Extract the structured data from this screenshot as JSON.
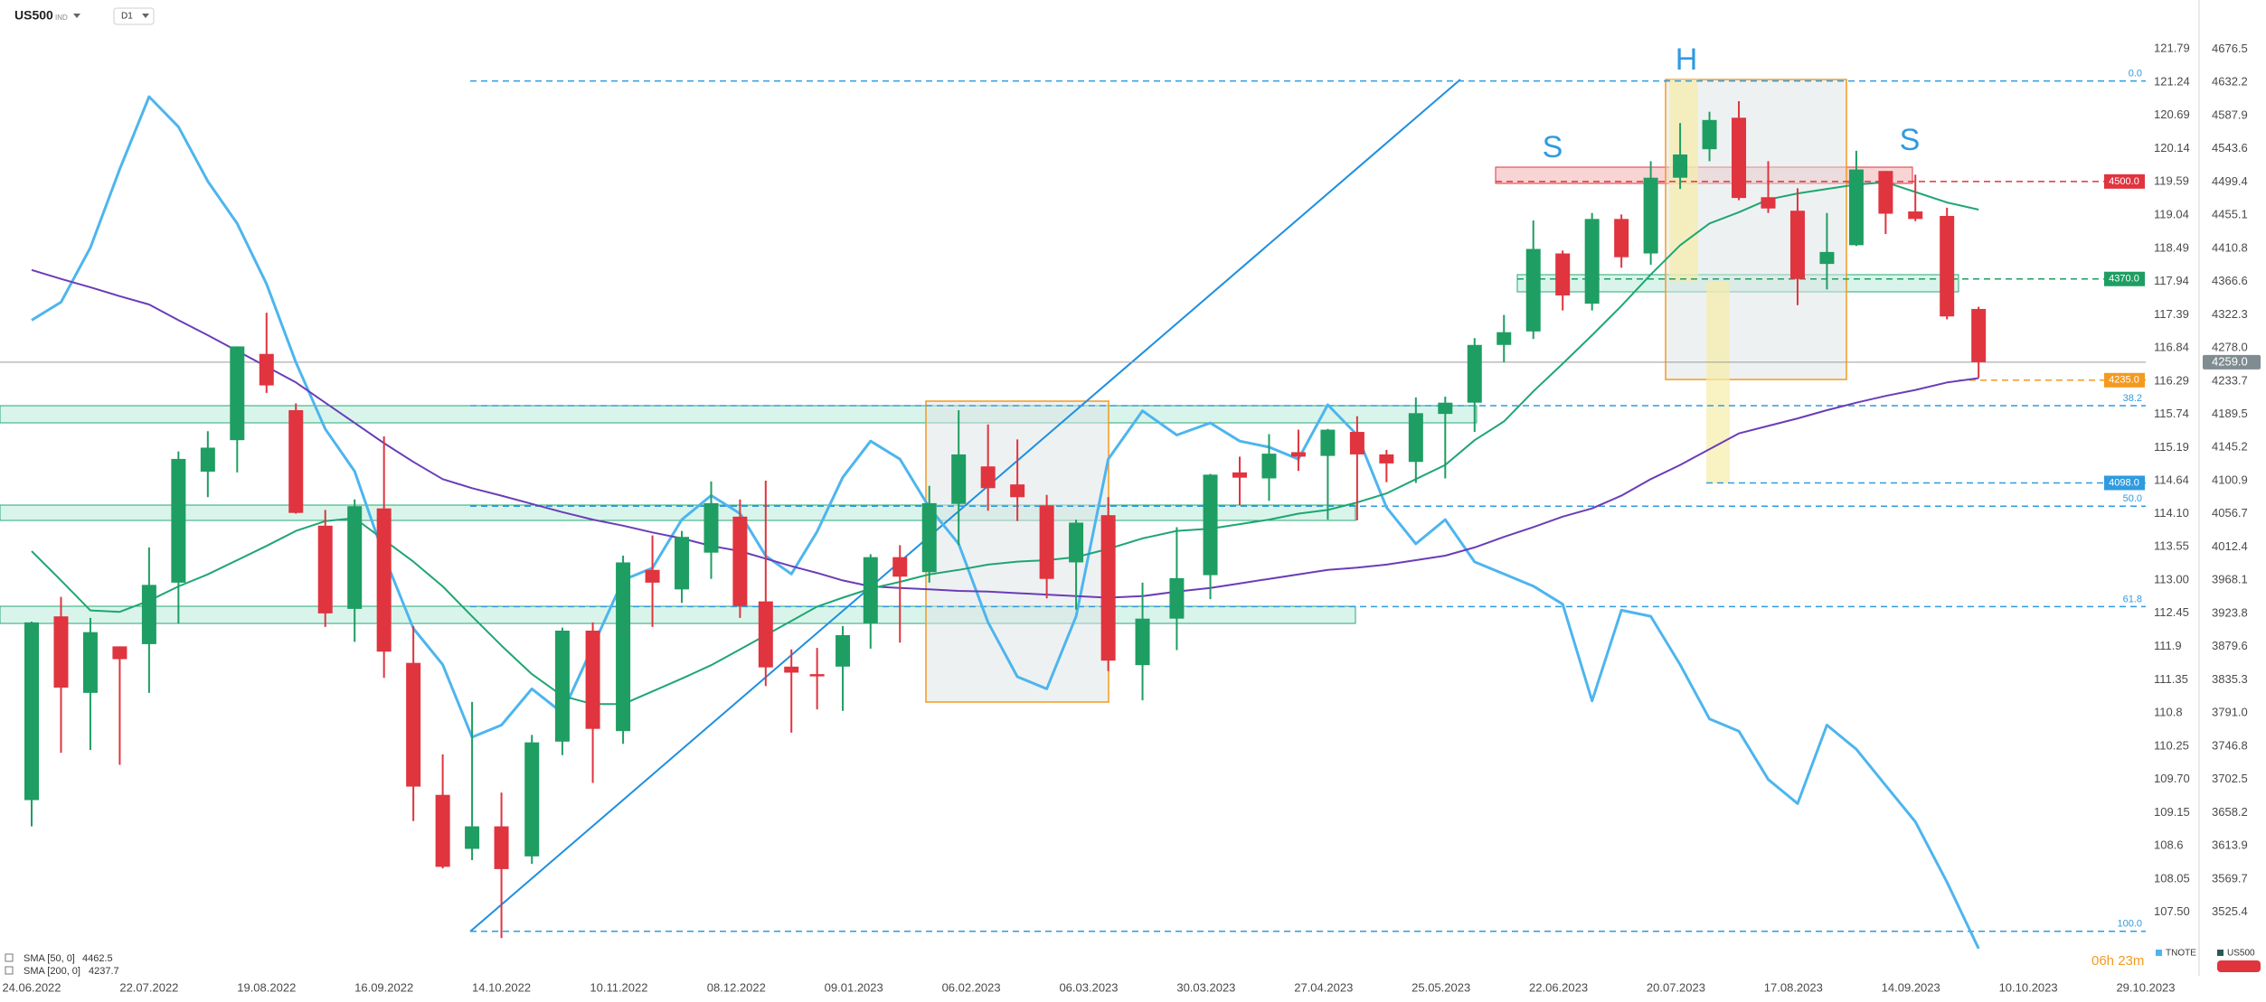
{
  "toolbar": {
    "symbol": "US500",
    "badge": "IND",
    "timeframe": "D1"
  },
  "chart_data": {
    "type": "candlestick",
    "x": [
      "24.06.2022",
      "01.07.2022",
      "08.07.2022",
      "15.07.2022",
      "22.07.2022",
      "29.07.2022",
      "05.08.2022",
      "12.08.2022",
      "19.08.2022",
      "26.08.2022",
      "02.09.2022",
      "09.09.2022",
      "16.09.2022",
      "23.09.2022",
      "30.09.2022",
      "07.10.2022",
      "14.10.2022",
      "21.10.2022",
      "28.10.2022",
      "04.11.2022",
      "11.11.2022",
      "18.11.2022",
      "25.11.2022",
      "02.12.2022",
      "09.12.2022",
      "16.12.2022",
      "23.12.2022",
      "30.12.2022",
      "06.01.2023",
      "13.01.2023",
      "20.01.2023",
      "27.01.2023",
      "03.02.2023",
      "10.02.2023",
      "17.02.2023",
      "24.02.2023",
      "03.03.2023",
      "10.03.2023",
      "17.03.2023",
      "24.03.2023",
      "31.03.2023",
      "07.04.2023",
      "14.04.2023",
      "21.04.2023",
      "28.04.2023",
      "05.05.2023",
      "12.05.2023",
      "19.05.2023",
      "26.05.2023",
      "02.06.2023",
      "09.06.2023",
      "16.06.2023",
      "23.06.2023",
      "30.06.2023",
      "07.07.2023",
      "14.07.2023",
      "21.07.2023",
      "28.07.2023",
      "04.08.2023",
      "11.08.2023",
      "18.08.2023",
      "25.08.2023",
      "01.09.2023",
      "08.09.2023",
      "15.09.2023",
      "22.09.2023",
      "29.09.2023"
    ],
    "series": [
      {
        "name": "US500",
        "type": "candlestick",
        "up_color": "#1e9e62",
        "down_color": "#e0343f",
        "open": [
          3675,
          3920,
          3818,
          3880,
          3883,
          3965,
          4113,
          4155,
          4270,
          4195,
          4041,
          3930,
          4064,
          3858,
          3682,
          3610,
          3640,
          3600,
          3753,
          3901,
          3767,
          3982,
          3956,
          4005,
          4053,
          3940,
          3853,
          3843,
          3853,
          3911,
          3999,
          3979,
          4070,
          4120,
          4096,
          4068,
          3992,
          4055,
          3855,
          3917,
          3975,
          4112,
          4104,
          4139,
          4134,
          4166,
          4136,
          4126,
          4190,
          4205,
          4282,
          4300,
          4404,
          4337,
          4450,
          4404,
          4505,
          4543,
          4585,
          4479,
          4461,
          4390,
          4415,
          4514,
          4460,
          4454,
          4330
        ],
        "high": [
          3913,
          3946,
          3918,
          3880,
          4012,
          4140,
          4167,
          4280,
          4325,
          4204,
          4062,
          4076,
          4160,
          3907,
          3736,
          3806,
          3685,
          3762,
          3905,
          3912,
          4001,
          4028,
          4034,
          4100,
          4076,
          4101,
          3876,
          3878,
          3907,
          4003,
          4015,
          4094,
          4195,
          4176,
          4156,
          4082,
          4049,
          4079,
          3965,
          4039,
          4110,
          4133,
          4163,
          4169,
          4170,
          4187,
          4142,
          4212,
          4213,
          4291,
          4322,
          4448,
          4408,
          4458,
          4456,
          4527,
          4578,
          4593,
          4607,
          4527,
          4491,
          4458,
          4541,
          4514,
          4509,
          4465,
          4333
        ],
        "low": [
          3640,
          3738,
          3742,
          3722,
          3818,
          3910,
          4079,
          4112,
          4218,
          4057,
          3906,
          3886,
          3838,
          3647,
          3584,
          3595,
          3491,
          3590,
          3735,
          3698,
          3750,
          3906,
          3938,
          3970,
          3918,
          3827,
          3765,
          3796,
          3794,
          3877,
          3885,
          3965,
          4015,
          4061,
          4047,
          3944,
          3929,
          3847,
          3808,
          3875,
          3943,
          4068,
          4074,
          4114,
          4049,
          4048,
          4099,
          4098,
          4104,
          4166,
          4259,
          4290,
          4328,
          4328,
          4385,
          4389,
          4490,
          4527,
          4475,
          4458,
          4335,
          4356,
          4414,
          4430,
          4447,
          4316,
          4238
        ],
        "close": [
          3912,
          3825,
          3899,
          3863,
          3962,
          4130,
          4145,
          4280,
          4228,
          4058,
          3924,
          4067,
          3873,
          3693,
          3586,
          3640,
          3583,
          3752,
          3901,
          3770,
          3992,
          3965,
          4026,
          4071,
          3934,
          3852,
          3845,
          3840,
          3895,
          3999,
          3973,
          4071,
          4136,
          4091,
          4079,
          3970,
          4045,
          3861,
          3917,
          3971,
          4109,
          4105,
          4137,
          4133,
          4169,
          4136,
          4124,
          4191,
          4205,
          4282,
          4299,
          4410,
          4348,
          4450,
          4399,
          4505,
          4536,
          4582,
          4478,
          4464,
          4370,
          4406,
          4516,
          4457,
          4450,
          4320,
          4259
        ]
      },
      {
        "name": "TNOTE",
        "type": "line",
        "axis": "y2",
        "color": "#4db5ee",
        "values": [
          117.3,
          117.6,
          118.5,
          119.8,
          121.0,
          120.5,
          119.6,
          118.9,
          117.9,
          116.6,
          115.5,
          114.8,
          113.4,
          112.2,
          111.6,
          110.4,
          110.6,
          111.2,
          110.8,
          111.9,
          113.0,
          113.2,
          114.0,
          114.4,
          114.1,
          113.4,
          113.1,
          113.8,
          114.7,
          115.3,
          115.0,
          114.2,
          113.6,
          112.3,
          111.4,
          111.2,
          112.4,
          115.0,
          115.8,
          115.4,
          115.6,
          115.3,
          115.2,
          115.0,
          115.9,
          115.4,
          114.2,
          113.6,
          114.0,
          113.3,
          113.1,
          112.9,
          112.6,
          111.0,
          112.5,
          112.4,
          111.6,
          110.7,
          110.5,
          109.7,
          109.3,
          110.6,
          110.2,
          109.6,
          109.0,
          108.0,
          106.9
        ]
      },
      {
        "name": "SMA [50, 0]",
        "type": "line",
        "color": "#1ea672",
        "values": [
          4007,
          3968,
          3928,
          3926,
          3941,
          3960,
          3976,
          3995,
          4014,
          4034,
          4047,
          4051,
          4022,
          3993,
          3960,
          3920,
          3881,
          3843,
          3814,
          3803,
          3803,
          3820,
          3837,
          3855,
          3876,
          3895,
          3914,
          3933,
          3945,
          3957,
          3966,
          3976,
          3982,
          3989,
          3993,
          3995,
          3999,
          4010,
          4024,
          4034,
          4037,
          4043,
          4049,
          4057,
          4062,
          4072,
          4084,
          4103,
          4122,
          4155,
          4180,
          4220,
          4257,
          4295,
          4334,
          4376,
          4415,
          4444,
          4459,
          4476,
          4484,
          4490,
          4496,
          4499,
          4486,
          4472,
          4462.5
        ]
      },
      {
        "name": "SMA [200, 0]",
        "type": "line",
        "color": "#6a3db8",
        "values": [
          4382,
          4370,
          4359,
          4347,
          4336,
          4315,
          4295,
          4274,
          4253,
          4232,
          4205,
          4178,
          4151,
          4126,
          4103,
          4091,
          4081,
          4070,
          4059,
          4049,
          4041,
          4032,
          4024,
          4014,
          4007,
          3997,
          3987,
          3978,
          3968,
          3960,
          3958,
          3956,
          3954,
          3953,
          3951,
          3949,
          3947,
          3945,
          3947,
          3953,
          3958,
          3964,
          3970,
          3976,
          3982,
          3985,
          3989,
          3995,
          4001,
          4012,
          4026,
          4039,
          4053,
          4064,
          4081,
          4103,
          4122,
          4143,
          4164,
          4174,
          4184,
          4195,
          4205,
          4214,
          4222,
          4232,
          4237.7
        ]
      }
    ],
    "xticks": [
      "24.06.2022",
      "22.07.2022",
      "19.08.2022",
      "16.09.2022",
      "14.10.2022",
      "10.11.2022",
      "08.12.2022",
      "09.01.2023",
      "06.02.2023",
      "06.03.2023",
      "30.03.2023",
      "27.04.2023",
      "25.05.2023",
      "22.06.2023",
      "20.07.2023",
      "17.08.2023",
      "14.09.2023",
      "10.10.2023",
      "29.10.2023"
    ],
    "ylim": [
      3440.7,
      4742
    ],
    "yticks": [
      4676.5,
      4632.2,
      4587.9,
      4543.6,
      4499.4,
      4455.1,
      4410.8,
      4366.6,
      4322.3,
      {
        "value": 4278,
        "label": "4278.0"
      },
      4233.7,
      4189.5,
      4145.2,
      4100.9,
      4056.7,
      4012.4,
      3968.1,
      3923.8,
      3879.6,
      3835.3,
      {
        "value": 3791,
        "label": "3791.0"
      },
      3746.8,
      3702.5,
      3658.2,
      3613.9,
      3569.7,
      3525.4
    ],
    "y2lim": [
      106.45,
      122.6
    ],
    "y2ticks": [
      121.79,
      121.24,
      120.69,
      120.14,
      119.59,
      119.04,
      118.49,
      117.94,
      117.39,
      116.84,
      116.29,
      115.74,
      115.19,
      114.64,
      {
        "value": 114.1,
        "label": "114.10"
      },
      113.55,
      {
        "value": 113,
        "label": "113.00"
      },
      112.45,
      111.9,
      111.35,
      110.8,
      110.25,
      {
        "value": 109.7,
        "label": "109.70"
      },
      109.15,
      108.6,
      108.05,
      {
        "value": 107.5,
        "label": "107.50"
      }
    ],
    "levels": [
      {
        "value": 4500,
        "label": "4500.0",
        "color": "#e0343f"
      },
      {
        "value": 4370,
        "label": "4370.0",
        "color": "#1e9e62"
      },
      {
        "value": 4235,
        "label": "4235.0",
        "color": "#f39a1f"
      },
      {
        "value": 4098,
        "label": "4098.0",
        "color": "#2f9be0"
      }
    ],
    "fib": [
      {
        "price": 4634,
        "label": "0.0"
      },
      {
        "price": 4201,
        "label": "38.2"
      },
      {
        "price": 4067,
        "label": "50.0"
      },
      {
        "price": 3933,
        "label": "61.8"
      },
      {
        "price": 3500,
        "label": "100.0"
      }
    ],
    "current_price": {
      "value": 4259,
      "label": "4259.0"
    },
    "annotations": [
      "S",
      "H",
      "S"
    ],
    "countdown": "06h 23m"
  }
}
